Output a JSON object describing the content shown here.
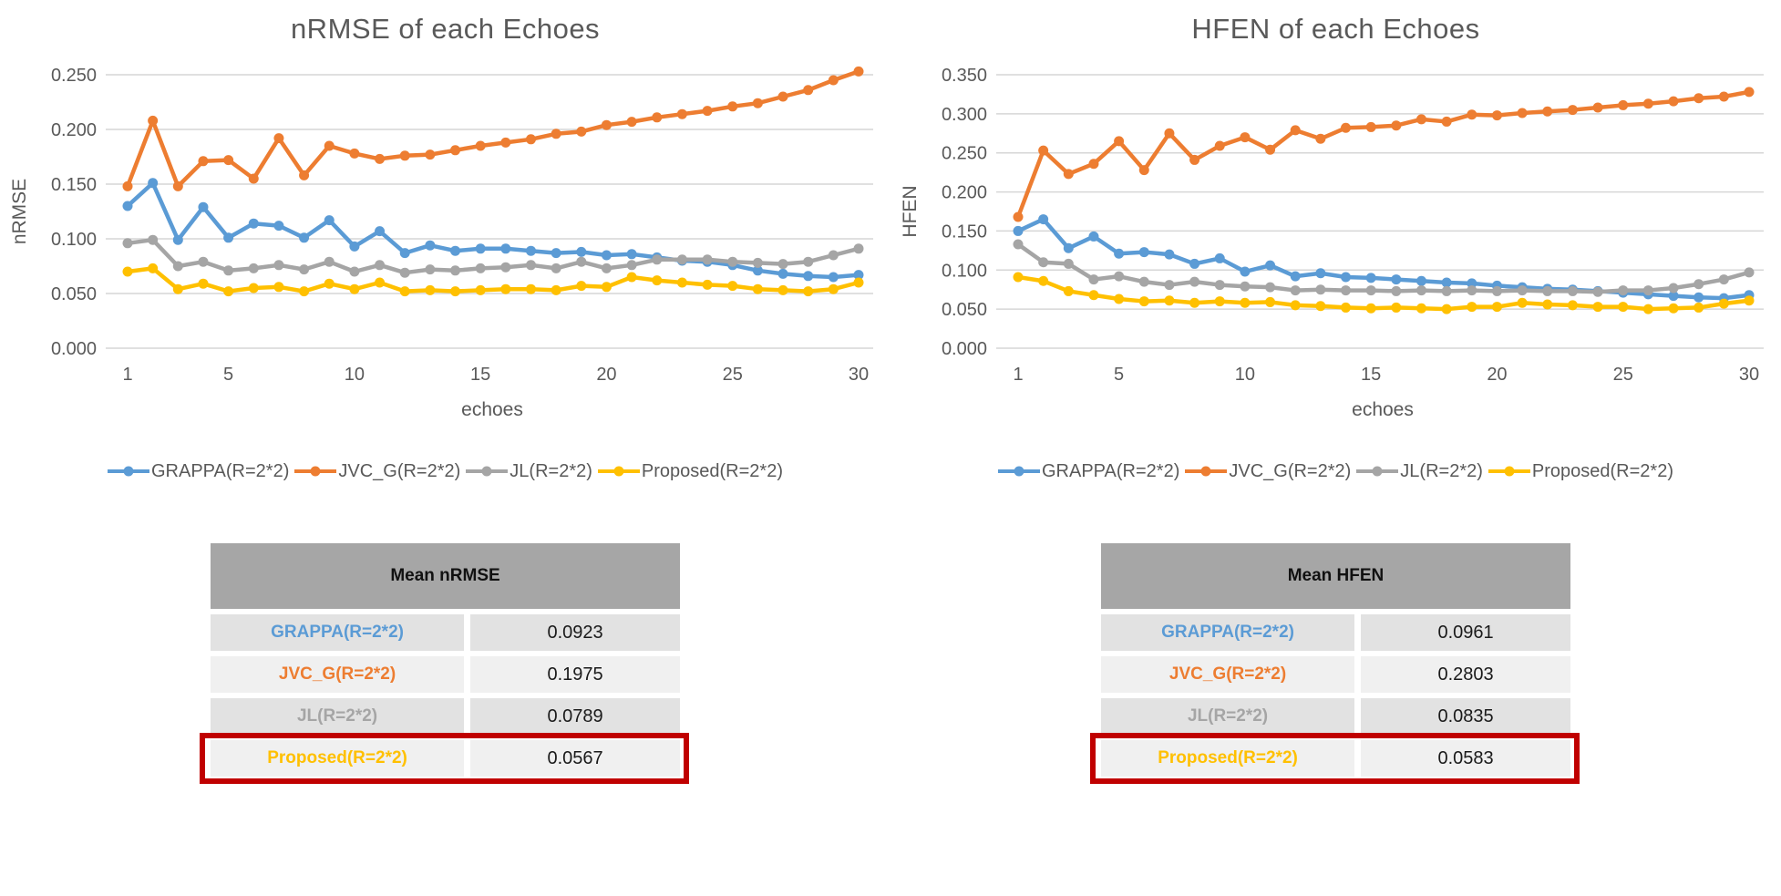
{
  "colors": {
    "grappa": "#5B9BD5",
    "jvc_g": "#ED7D31",
    "jl": "#A5A5A5",
    "proposed": "#FFC000",
    "axis_text": "#595959",
    "gridline": "#D6D6D6",
    "table_header_bg": "#A6A6A6",
    "table_row_dark": "#E2E2E2",
    "table_row_light": "#F0F0F0",
    "highlight_border": "#C00000"
  },
  "chart_data": [
    {
      "type": "line",
      "title": "nRMSE of each Echoes",
      "xlabel": "echoes",
      "ylabel": "nRMSE",
      "x": [
        1,
        2,
        3,
        4,
        5,
        6,
        7,
        8,
        9,
        10,
        11,
        12,
        13,
        14,
        15,
        16,
        17,
        18,
        19,
        20,
        21,
        22,
        23,
        24,
        25,
        26,
        27,
        28,
        29,
        30
      ],
      "xticks": [
        1,
        5,
        10,
        15,
        20,
        25,
        30
      ],
      "ylim": [
        0,
        0.25
      ],
      "ytick_labels": [
        "0.000",
        "0.050",
        "0.100",
        "0.150",
        "0.200",
        "0.250"
      ],
      "grid": true,
      "legend_position": "bottom",
      "series": [
        {
          "name": "GRAPPA(R=2*2)",
          "color": "#5B9BD5",
          "values": [
            0.13,
            0.151,
            0.099,
            0.129,
            0.101,
            0.114,
            0.112,
            0.101,
            0.117,
            0.093,
            0.107,
            0.087,
            0.094,
            0.089,
            0.091,
            0.091,
            0.089,
            0.087,
            0.088,
            0.085,
            0.086,
            0.083,
            0.08,
            0.079,
            0.076,
            0.071,
            0.068,
            0.066,
            0.065,
            0.067
          ]
        },
        {
          "name": "JVC_G(R=2*2)",
          "color": "#ED7D31",
          "values": [
            0.148,
            0.208,
            0.148,
            0.171,
            0.172,
            0.155,
            0.192,
            0.158,
            0.185,
            0.178,
            0.173,
            0.176,
            0.177,
            0.181,
            0.185,
            0.188,
            0.191,
            0.196,
            0.198,
            0.204,
            0.207,
            0.211,
            0.214,
            0.217,
            0.221,
            0.224,
            0.23,
            0.236,
            0.245,
            0.253
          ]
        },
        {
          "name": "JL(R=2*2)",
          "color": "#A5A5A5",
          "values": [
            0.096,
            0.099,
            0.075,
            0.079,
            0.071,
            0.073,
            0.076,
            0.072,
            0.079,
            0.07,
            0.076,
            0.069,
            0.072,
            0.071,
            0.073,
            0.074,
            0.076,
            0.073,
            0.079,
            0.073,
            0.076,
            0.081,
            0.081,
            0.081,
            0.079,
            0.078,
            0.077,
            0.079,
            0.085,
            0.091
          ]
        },
        {
          "name": "Proposed(R=2*2)",
          "color": "#FFC000",
          "values": [
            0.07,
            0.073,
            0.054,
            0.059,
            0.052,
            0.055,
            0.056,
            0.052,
            0.059,
            0.054,
            0.06,
            0.052,
            0.053,
            0.052,
            0.053,
            0.054,
            0.054,
            0.053,
            0.057,
            0.056,
            0.065,
            0.062,
            0.06,
            0.058,
            0.057,
            0.054,
            0.053,
            0.052,
            0.054,
            0.06
          ]
        }
      ]
    },
    {
      "type": "line",
      "title": "HFEN of each Echoes",
      "xlabel": "echoes",
      "ylabel": "HFEN",
      "x": [
        1,
        2,
        3,
        4,
        5,
        6,
        7,
        8,
        9,
        10,
        11,
        12,
        13,
        14,
        15,
        16,
        17,
        18,
        19,
        20,
        21,
        22,
        23,
        24,
        25,
        26,
        27,
        28,
        29,
        30
      ],
      "xticks": [
        1,
        5,
        10,
        15,
        20,
        25,
        30
      ],
      "ylim": [
        0,
        0.35
      ],
      "ytick_labels": [
        "0.000",
        "0.050",
        "0.100",
        "0.150",
        "0.200",
        "0.250",
        "0.300",
        "0.350"
      ],
      "grid": true,
      "legend_position": "bottom",
      "series": [
        {
          "name": "GRAPPA(R=2*2)",
          "color": "#5B9BD5",
          "values": [
            0.15,
            0.165,
            0.128,
            0.143,
            0.121,
            0.123,
            0.12,
            0.108,
            0.115,
            0.098,
            0.106,
            0.092,
            0.096,
            0.091,
            0.09,
            0.088,
            0.086,
            0.084,
            0.083,
            0.08,
            0.078,
            0.076,
            0.075,
            0.073,
            0.071,
            0.069,
            0.067,
            0.065,
            0.064,
            0.068
          ]
        },
        {
          "name": "JVC_G(R=2*2)",
          "color": "#ED7D31",
          "values": [
            0.168,
            0.253,
            0.223,
            0.236,
            0.265,
            0.228,
            0.275,
            0.241,
            0.259,
            0.27,
            0.254,
            0.279,
            0.268,
            0.282,
            0.283,
            0.285,
            0.293,
            0.29,
            0.299,
            0.298,
            0.301,
            0.303,
            0.305,
            0.308,
            0.311,
            0.313,
            0.316,
            0.32,
            0.322,
            0.328
          ]
        },
        {
          "name": "JL(R=2*2)",
          "color": "#A5A5A5",
          "values": [
            0.133,
            0.11,
            0.108,
            0.088,
            0.092,
            0.085,
            0.081,
            0.085,
            0.081,
            0.079,
            0.078,
            0.074,
            0.075,
            0.074,
            0.074,
            0.073,
            0.074,
            0.073,
            0.074,
            0.073,
            0.074,
            0.073,
            0.073,
            0.072,
            0.074,
            0.074,
            0.077,
            0.082,
            0.088,
            0.097
          ]
        },
        {
          "name": "Proposed(R=2*2)",
          "color": "#FFC000",
          "values": [
            0.091,
            0.086,
            0.073,
            0.068,
            0.063,
            0.06,
            0.061,
            0.058,
            0.06,
            0.058,
            0.059,
            0.055,
            0.054,
            0.052,
            0.051,
            0.052,
            0.051,
            0.05,
            0.053,
            0.053,
            0.058,
            0.056,
            0.055,
            0.053,
            0.053,
            0.05,
            0.051,
            0.052,
            0.057,
            0.061
          ]
        }
      ]
    }
  ],
  "tables": [
    {
      "header": "Mean nRMSE",
      "rows": [
        {
          "label": "GRAPPA(R=2*2)",
          "value": "0.0923",
          "color": "#5B9BD5",
          "highlight": false
        },
        {
          "label": "JVC_G(R=2*2)",
          "value": "0.1975",
          "color": "#ED7D31",
          "highlight": false
        },
        {
          "label": "JL(R=2*2)",
          "value": "0.0789",
          "color": "#A5A5A5",
          "highlight": false
        },
        {
          "label": "Proposed(R=2*2)",
          "value": "0.0567",
          "color": "#FFC000",
          "highlight": true
        }
      ]
    },
    {
      "header": "Mean HFEN",
      "rows": [
        {
          "label": "GRAPPA(R=2*2)",
          "value": "0.0961",
          "color": "#5B9BD5",
          "highlight": false
        },
        {
          "label": "JVC_G(R=2*2)",
          "value": "0.2803",
          "color": "#ED7D31",
          "highlight": false
        },
        {
          "label": "JL(R=2*2)",
          "value": "0.0835",
          "color": "#A5A5A5",
          "highlight": false
        },
        {
          "label": "Proposed(R=2*2)",
          "value": "0.0583",
          "color": "#FFC000",
          "highlight": true
        }
      ]
    }
  ]
}
